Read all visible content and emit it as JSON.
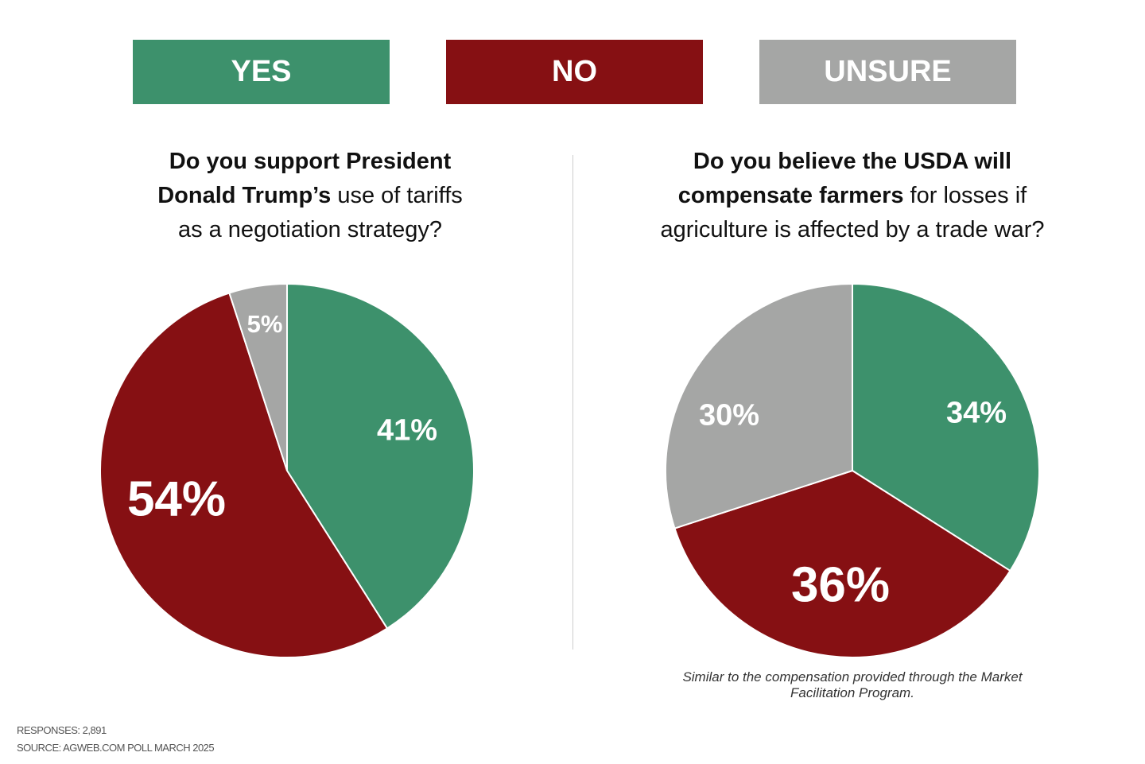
{
  "colors": {
    "yes": "#3d916c",
    "no": "#861013",
    "unsure": "#a5a6a5"
  },
  "legend": [
    {
      "label": "YES"
    },
    {
      "label": "NO"
    },
    {
      "label": "UNSURE"
    }
  ],
  "chart_data": [
    {
      "type": "pie",
      "title_bold": "Do you support President Donald Trump’s",
      "title_rest": " use of tariffs as a negotiation strategy?",
      "categories": [
        "YES",
        "NO",
        "UNSURE"
      ],
      "values": [
        41,
        54,
        5
      ],
      "labels": [
        "41%",
        "54%",
        "5%"
      ]
    },
    {
      "type": "pie",
      "title_bold": "Do you believe the USDA will compensate farmers",
      "title_rest": " for losses if agriculture is affected by a trade war?",
      "categories": [
        "YES",
        "NO",
        "UNSURE"
      ],
      "values": [
        34,
        36,
        30
      ],
      "labels": [
        "34%",
        "36%",
        "30%"
      ],
      "note": "Similar to the compensation provided through the Market Facilitation Program."
    }
  ],
  "footer": {
    "responses": "RESPONSES: 2,891",
    "source": "SOURCE: AGWEB.COM POLL MARCH 2025"
  }
}
